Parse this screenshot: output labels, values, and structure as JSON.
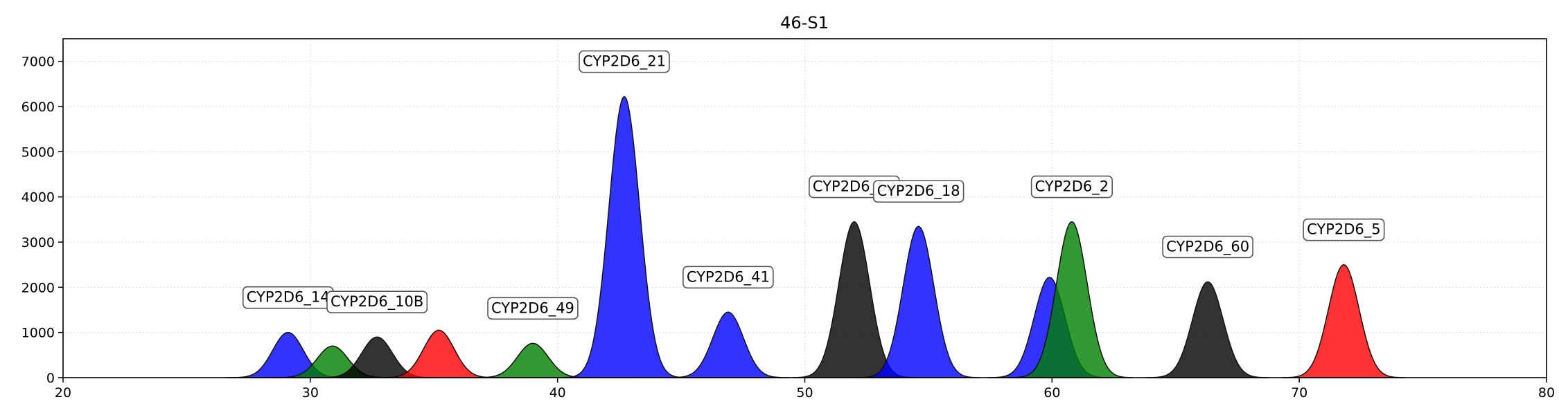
{
  "chart_data": {
    "type": "area",
    "title": "46-S1",
    "xlabel": "",
    "ylabel": "",
    "xlim": [
      20,
      80
    ],
    "ylim": [
      0,
      7500
    ],
    "x_ticks": [
      20,
      30,
      40,
      50,
      60,
      70,
      80
    ],
    "y_ticks": [
      0,
      1000,
      2000,
      3000,
      4000,
      5000,
      6000,
      7000
    ],
    "grid": true,
    "colors": {
      "blue": "#0000ff",
      "green": "#008000",
      "black": "#000000",
      "red": "#ff0000"
    },
    "peaks": [
      {
        "label": "CYP2D6_14",
        "center": 29.1,
        "height": 1000,
        "color": "blue"
      },
      {
        "label": "",
        "center": 30.9,
        "height": 700,
        "color": "green"
      },
      {
        "label": "CYP2D6_10B",
        "center": 32.7,
        "height": 900,
        "color": "black"
      },
      {
        "label": "",
        "center": 35.2,
        "height": 1050,
        "color": "red"
      },
      {
        "label": "CYP2D6_49",
        "center": 39.0,
        "height": 760,
        "color": "green"
      },
      {
        "label": "CYP2D6_21",
        "center": 42.7,
        "height": 6220,
        "color": "blue"
      },
      {
        "label": "CYP2D6_41",
        "center": 46.9,
        "height": 1450,
        "color": "blue"
      },
      {
        "label": "CYP2D6_52",
        "center": 52.0,
        "height": 3450,
        "color": "black"
      },
      {
        "label": "CYP2D6_18",
        "center": 54.6,
        "height": 3350,
        "color": "blue"
      },
      {
        "label": "",
        "center": 59.9,
        "height": 2220,
        "color": "blue"
      },
      {
        "label": "CYP2D6_2",
        "center": 60.8,
        "height": 3450,
        "color": "green"
      },
      {
        "label": "CYP2D6_60",
        "center": 66.3,
        "height": 2120,
        "color": "black"
      },
      {
        "label": "CYP2D6_5",
        "center": 71.8,
        "height": 2500,
        "color": "red"
      }
    ]
  }
}
